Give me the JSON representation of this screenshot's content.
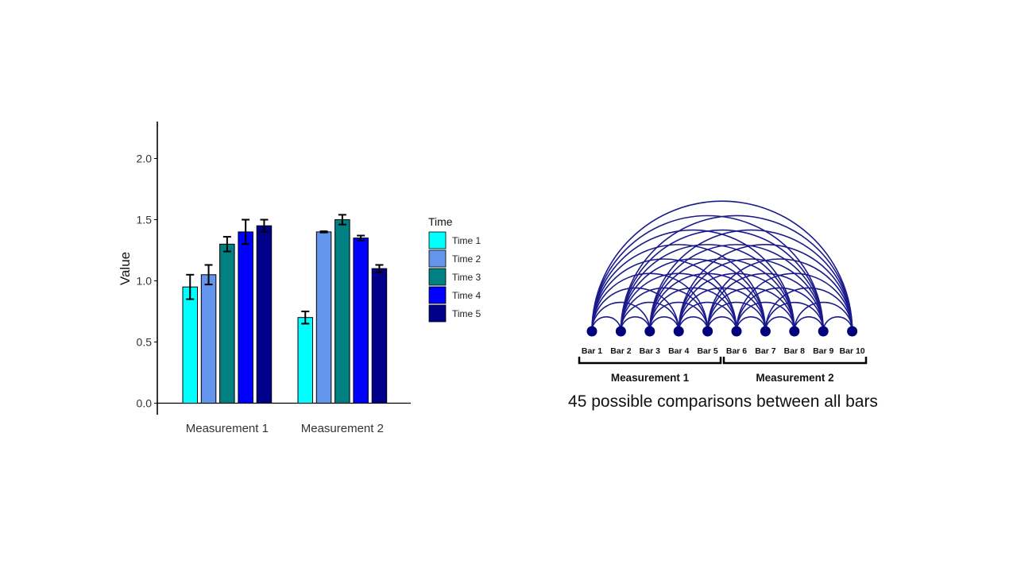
{
  "chart_data": [
    {
      "type": "bar",
      "categories": [
        "Measurement 1",
        "Measurement 2"
      ],
      "ylabel": "Value",
      "ylim": [
        0,
        2.3
      ],
      "yticks": [
        "0.0",
        "0.5",
        "1.0",
        "1.5",
        "2.0"
      ],
      "ytick_values": [
        0,
        0.5,
        1.0,
        1.5,
        2.0
      ],
      "grid": false,
      "legend": {
        "title": "Time",
        "placement": "right"
      },
      "error_bars": true,
      "series": [
        {
          "name": "Time 1",
          "color": "#00FFFF",
          "values": [
            0.95,
            0.7
          ],
          "errors": [
            0.1,
            0.05
          ]
        },
        {
          "name": "Time 2",
          "color": "#6495ED",
          "values": [
            1.05,
            1.4
          ],
          "errors": [
            0.08,
            0.005
          ]
        },
        {
          "name": "Time 3",
          "color": "#008080",
          "values": [
            1.3,
            1.5
          ],
          "errors": [
            0.06,
            0.04
          ]
        },
        {
          "name": "Time 4",
          "color": "#0000FF",
          "values": [
            1.4,
            1.35
          ],
          "errors": [
            0.1,
            0.02
          ]
        },
        {
          "name": "Time 5",
          "color": "#00008B",
          "values": [
            1.45,
            1.1
          ],
          "errors": [
            0.05,
            0.03
          ]
        }
      ]
    },
    {
      "type": "arc_diagram",
      "nodes": [
        "Bar 1",
        "Bar 2",
        "Bar 3",
        "Bar 4",
        "Bar 5",
        "Bar 6",
        "Bar 7",
        "Bar 8",
        "Bar 9",
        "Bar 10"
      ],
      "groups": [
        {
          "label": "Measurement 1",
          "nodes": [
            "Bar 1",
            "Bar 2",
            "Bar 3",
            "Bar 4",
            "Bar 5"
          ]
        },
        {
          "label": "Measurement 2",
          "nodes": [
            "Bar 6",
            "Bar 7",
            "Bar 8",
            "Bar 9",
            "Bar 10"
          ]
        }
      ],
      "connections": "all pairs",
      "color": "#1a1a8c",
      "caption": "45 possible comparisons between all bars"
    }
  ]
}
